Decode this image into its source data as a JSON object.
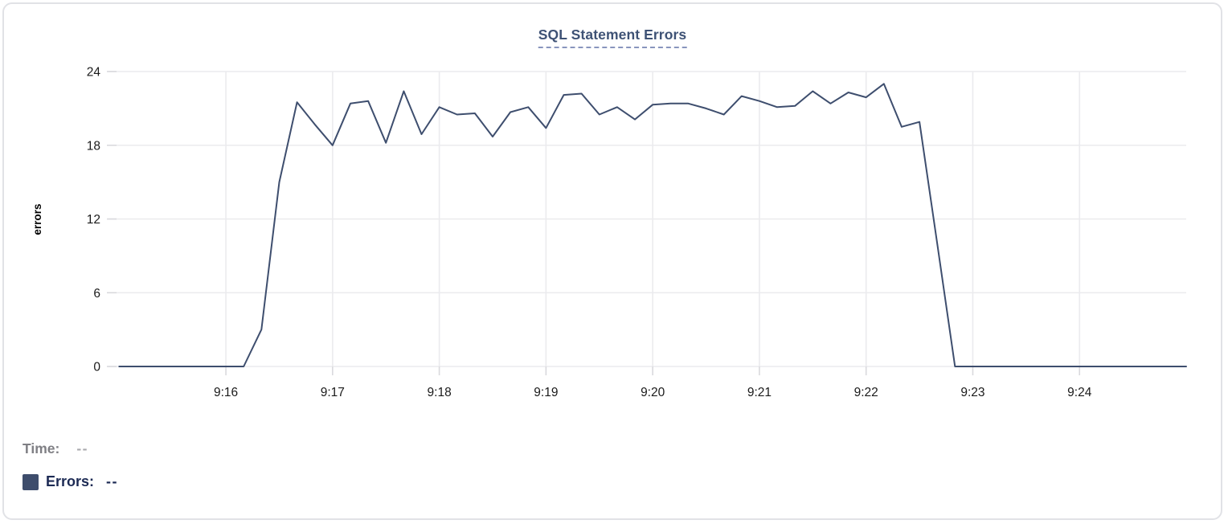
{
  "card": {
    "title": "SQL Statement Errors"
  },
  "tooltip_footer": {
    "time_label": "Time:",
    "time_value": "--",
    "series_label": "Errors:",
    "series_value": "--"
  },
  "colors": {
    "line": "#3E4E6E",
    "legend_swatch": "#3E4D6C",
    "title_text": "#3E5275",
    "title_underline": "#8995BD",
    "grid": "#ebebee",
    "tick": "#d9d9dd",
    "axis_text": "#1a1a1a",
    "axis_label_text": "#000000",
    "time_label_text": "#7F7F84",
    "time_value_text": "#A9A9AD",
    "errors_row_text": "#1C2A54",
    "card_border": "#e1e2e6",
    "background": "#ffffff"
  },
  "chart_data": {
    "type": "line",
    "title": "SQL Statement Errors",
    "xlabel": "",
    "ylabel": "errors",
    "ylim": [
      0,
      24
    ],
    "y_ticks": [
      0,
      6,
      12,
      18,
      24
    ],
    "x_tick_labels": [
      "9:16",
      "9:17",
      "9:18",
      "9:19",
      "9:20",
      "9:21",
      "9:22",
      "9:23",
      "9:24"
    ],
    "x_start_time": "9:15:00",
    "x_end_time": "9:25:00",
    "x_interval_seconds": 10,
    "grid": true,
    "legend_position": "bottom-left",
    "x": [
      "9:15:00",
      "9:15:10",
      "9:15:20",
      "9:15:30",
      "9:15:40",
      "9:15:50",
      "9:16:00",
      "9:16:10",
      "9:16:20",
      "9:16:30",
      "9:16:40",
      "9:16:50",
      "9:17:00",
      "9:17:10",
      "9:17:20",
      "9:17:30",
      "9:17:40",
      "9:17:50",
      "9:18:00",
      "9:18:10",
      "9:18:20",
      "9:18:30",
      "9:18:40",
      "9:18:50",
      "9:19:00",
      "9:19:10",
      "9:19:20",
      "9:19:30",
      "9:19:40",
      "9:19:50",
      "9:20:00",
      "9:20:10",
      "9:20:20",
      "9:20:30",
      "9:20:40",
      "9:20:50",
      "9:21:00",
      "9:21:10",
      "9:21:20",
      "9:21:30",
      "9:21:40",
      "9:21:50",
      "9:22:00",
      "9:22:10",
      "9:22:20",
      "9:22:30",
      "9:22:40",
      "9:22:50",
      "9:23:00",
      "9:23:10",
      "9:23:20",
      "9:23:30",
      "9:23:40",
      "9:23:50",
      "9:24:00",
      "9:24:10",
      "9:24:20",
      "9:24:30",
      "9:24:40",
      "9:24:50",
      "9:25:00"
    ],
    "series": [
      {
        "name": "Errors",
        "values": [
          0,
          0,
          0,
          0,
          0,
          0,
          0,
          0,
          3,
          15,
          21.5,
          19.7,
          18,
          21.4,
          21.6,
          18.2,
          22.4,
          18.9,
          21.1,
          20.5,
          20.6,
          18.7,
          20.7,
          21.1,
          19.4,
          22.1,
          22.2,
          20.5,
          21.1,
          20.1,
          21.3,
          21.4,
          21.4,
          21,
          20.5,
          22,
          21.6,
          21.1,
          21.2,
          22.4,
          21.4,
          22.3,
          21.9,
          23,
          19.5,
          19.9,
          10,
          0,
          0,
          0,
          0,
          0,
          0,
          0,
          0,
          0,
          0,
          0,
          0,
          0,
          0
        ]
      }
    ]
  }
}
